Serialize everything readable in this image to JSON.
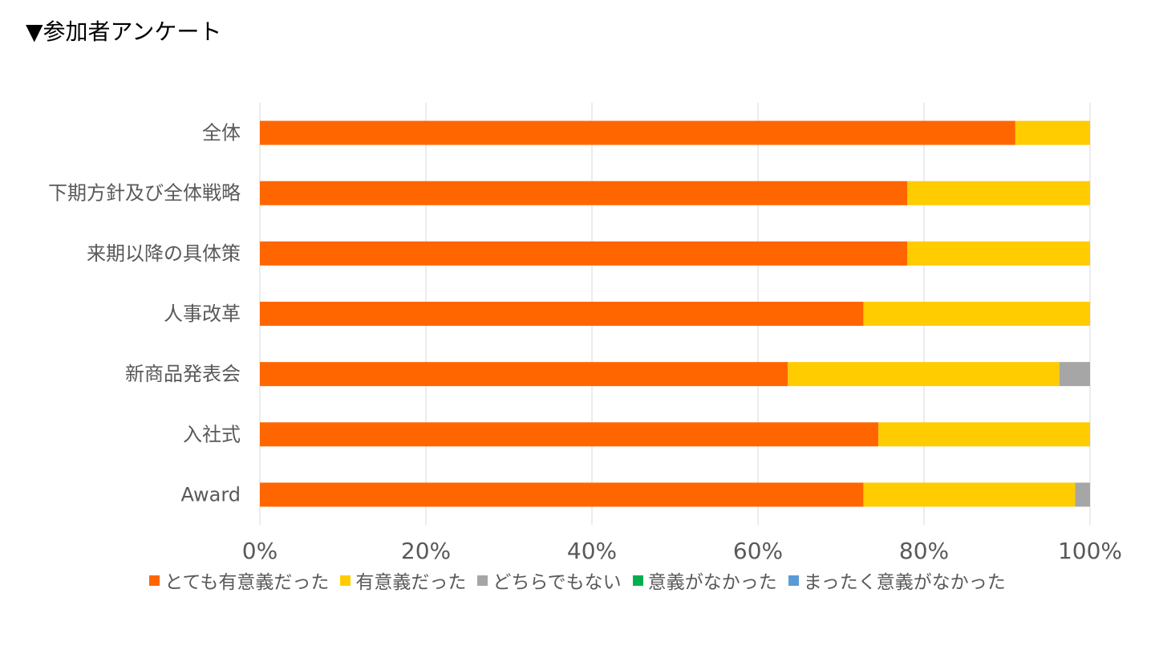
{
  "header": {
    "title": "▼参加者アンケート"
  },
  "chart_data": {
    "type": "bar",
    "orientation": "horizontal",
    "stacked": "percent",
    "categories": [
      "全体",
      "下期方針及び全体戦略",
      "来期以降の具体策",
      "人事改革",
      "新商品発表会",
      "入社式",
      "Award"
    ],
    "series": [
      {
        "name": "とても有意義だった",
        "color": "#FF6600",
        "values": [
          91,
          78,
          78,
          72.7,
          63.6,
          74.5,
          72.7
        ]
      },
      {
        "name": "有意義だった",
        "color": "#FFCC00",
        "values": [
          9,
          22,
          22,
          27.3,
          32.7,
          25.5,
          25.5
        ]
      },
      {
        "name": "どちらでもない",
        "color": "#A6A6A6",
        "values": [
          0,
          0,
          0,
          0,
          3.7,
          0,
          1.8
        ]
      },
      {
        "name": "意義がなかった",
        "color": "#00B050",
        "values": [
          0,
          0,
          0,
          0,
          0,
          0,
          0
        ]
      },
      {
        "name": "まったく意義がなかった",
        "color": "#5B9BD5",
        "values": [
          0,
          0,
          0,
          0,
          0,
          0,
          0
        ]
      }
    ],
    "xlim": [
      0,
      100
    ],
    "xticks": [
      "0%",
      "20%",
      "40%",
      "60%",
      "80%",
      "100%"
    ],
    "grid": "vertical",
    "legend_position": "bottom"
  }
}
